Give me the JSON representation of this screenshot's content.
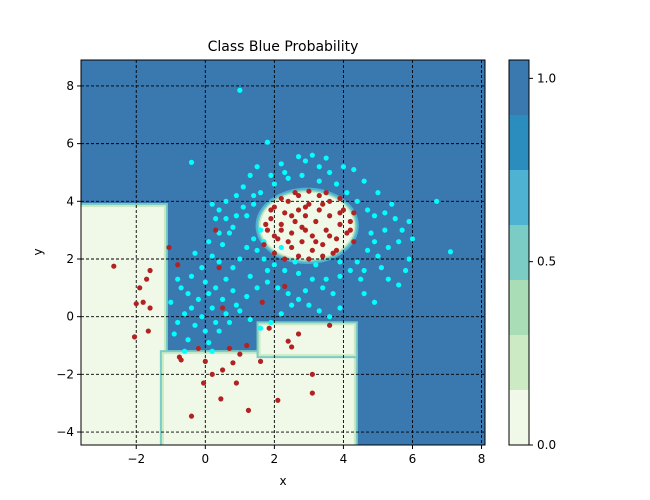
{
  "chart_data": {
    "type": "contourf-scatter",
    "title": "Class Blue Probability",
    "xlabel": "x",
    "ylabel": "y",
    "xlim": [
      -3.6,
      8.1
    ],
    "ylim": [
      -4.45,
      8.9
    ],
    "xticks": [
      -2,
      0,
      2,
      4,
      6,
      8
    ],
    "yticks": [
      -4,
      -2,
      0,
      2,
      4,
      6,
      8
    ],
    "grid": true,
    "colorbar": {
      "ticks": [
        0.0,
        0.5,
        1.0
      ],
      "tick_labels": [
        "0.0",
        "0.5",
        "1.0"
      ],
      "levels": [
        0.0,
        0.15,
        0.3,
        0.45,
        0.6,
        0.75,
        0.9,
        1.05
      ],
      "colors": [
        "#f0f9e8",
        "#ccebc5",
        "#a8ddb5",
        "#7bccc4",
        "#4eb3d3",
        "#2b8cbe",
        "#3a78b0"
      ]
    },
    "regions": [
      {
        "level": 0.0,
        "x_range": [
          -3.6,
          -1.2
        ],
        "y_range": [
          -4.45,
          3.8
        ],
        "label": "red-low-left"
      },
      {
        "level": 0.0,
        "x_range": [
          -1.2,
          4.3
        ],
        "y_range": [
          -4.45,
          -1.3
        ],
        "label": "red-low-bottom"
      },
      {
        "level": 0.0,
        "x_range": [
          1.6,
          4.3
        ],
        "y_range": [
          -1.3,
          -0.3
        ],
        "label": "red-low-bottom-step"
      },
      {
        "level": 0.0,
        "x_range": [
          1.6,
          4.3
        ],
        "y_range": [
          2.0,
          4.3
        ],
        "label": "red-inner-disc"
      }
    ],
    "series": [
      {
        "name": "",
        "color": "#00ffff",
        "points": [
          [
            1.0,
            7.85
          ],
          [
            1.8,
            6.05
          ],
          [
            -0.4,
            5.35
          ],
          [
            2.7,
            5.55
          ],
          [
            3.1,
            5.6
          ],
          [
            3.3,
            5.2
          ],
          [
            3.6,
            5.0
          ],
          [
            4.3,
            5.1
          ],
          [
            2.2,
            5.3
          ],
          [
            1.5,
            5.2
          ],
          [
            1.3,
            4.9
          ],
          [
            1.1,
            4.5
          ],
          [
            0.9,
            4.2
          ],
          [
            0.6,
            4.0
          ],
          [
            0.4,
            3.7
          ],
          [
            0.2,
            3.9
          ],
          [
            0.3,
            3.4
          ],
          [
            0.6,
            3.4
          ],
          [
            0.8,
            3.1
          ],
          [
            1.2,
            3.5
          ],
          [
            1.4,
            3.9
          ],
          [
            1.6,
            4.3
          ],
          [
            2.0,
            4.6
          ],
          [
            2.4,
            4.8
          ],
          [
            2.8,
            4.9
          ],
          [
            3.3,
            4.7
          ],
          [
            3.8,
            4.6
          ],
          [
            4.1,
            4.3
          ],
          [
            4.4,
            4.0
          ],
          [
            4.7,
            3.7
          ],
          [
            4.9,
            3.5
          ],
          [
            5.2,
            3.6
          ],
          [
            5.5,
            3.4
          ],
          [
            5.7,
            3.0
          ],
          [
            5.6,
            2.6
          ],
          [
            5.3,
            2.4
          ],
          [
            5.0,
            2.1
          ],
          [
            4.7,
            2.3
          ],
          [
            4.4,
            1.9
          ],
          [
            4.2,
            1.6
          ],
          [
            3.9,
            1.4
          ],
          [
            3.5,
            1.3
          ],
          [
            3.1,
            1.3
          ],
          [
            2.7,
            1.5
          ],
          [
            2.3,
            1.6
          ],
          [
            2.0,
            1.8
          ],
          [
            1.7,
            2.0
          ],
          [
            1.5,
            2.3
          ],
          [
            1.4,
            2.7
          ],
          [
            1.2,
            2.4
          ],
          [
            1.0,
            2.0
          ],
          [
            0.8,
            1.7
          ],
          [
            0.6,
            1.3
          ],
          [
            0.3,
            1.0
          ],
          [
            0.1,
            0.8
          ],
          [
            -0.2,
            0.6
          ],
          [
            -0.4,
            0.3
          ],
          [
            -0.6,
            0.1
          ],
          [
            -0.8,
            -0.2
          ],
          [
            -1.0,
            0.5
          ],
          [
            -0.7,
            1.0
          ],
          [
            -0.4,
            1.4
          ],
          [
            -0.1,
            1.7
          ],
          [
            0.2,
            2.1
          ],
          [
            0.5,
            2.5
          ],
          [
            0.7,
            2.9
          ],
          [
            0.4,
            1.9
          ],
          [
            0.0,
            1.2
          ],
          [
            -0.3,
            -0.3
          ],
          [
            -0.5,
            -0.8
          ],
          [
            -0.2,
            -1.1
          ],
          [
            0.1,
            -0.9
          ],
          [
            0.0,
            -0.5
          ],
          [
            0.3,
            -0.2
          ],
          [
            0.6,
            0.1
          ],
          [
            0.9,
            0.4
          ],
          [
            1.2,
            0.7
          ],
          [
            1.5,
            1.0
          ],
          [
            1.8,
            1.2
          ],
          [
            2.1,
            1.0
          ],
          [
            2.4,
            0.8
          ],
          [
            2.7,
            0.6
          ],
          [
            3.0,
            0.4
          ],
          [
            3.3,
            0.2
          ],
          [
            3.6,
            0.0
          ],
          [
            3.9,
            0.3
          ],
          [
            3.7,
            0.8
          ],
          [
            3.4,
            1.0
          ],
          [
            2.9,
            0.9
          ],
          [
            2.5,
            0.4
          ],
          [
            2.2,
            0.1
          ],
          [
            1.9,
            -0.2
          ],
          [
            1.6,
            -0.4
          ],
          [
            1.3,
            -0.1
          ],
          [
            1.0,
            0.2
          ],
          [
            0.7,
            -0.2
          ],
          [
            0.4,
            -0.5
          ],
          [
            0.2,
            -1.2
          ],
          [
            -0.6,
            -1.2
          ],
          [
            -0.9,
            -0.6
          ],
          [
            6.0,
            2.7
          ],
          [
            6.7,
            4.0
          ],
          [
            7.1,
            2.25
          ],
          [
            5.8,
            1.6
          ],
          [
            5.6,
            1.1
          ],
          [
            5.3,
            1.3
          ],
          [
            4.9,
            0.5
          ],
          [
            4.6,
            0.8
          ],
          [
            4.5,
            1.3
          ],
          [
            5.1,
            1.7
          ],
          [
            5.9,
            2.0
          ],
          [
            5.9,
            3.3
          ],
          [
            5.4,
            3.9
          ],
          [
            5.0,
            4.3
          ],
          [
            4.6,
            4.7
          ],
          [
            4.0,
            5.2
          ],
          [
            3.5,
            5.5
          ],
          [
            2.9,
            5.4
          ],
          [
            2.3,
            5.0
          ],
          [
            1.9,
            4.9
          ],
          [
            1.4,
            4.2
          ],
          [
            1.1,
            3.8
          ],
          [
            0.9,
            3.5
          ],
          [
            1.6,
            3.0
          ],
          [
            1.7,
            2.6
          ],
          [
            2.0,
            2.2
          ],
          [
            2.2,
            2.4
          ],
          [
            4.8,
            2.9
          ],
          [
            5.2,
            3.0
          ],
          [
            4.9,
            2.6
          ],
          [
            4.6,
            1.6
          ],
          [
            3.9,
            1.9
          ],
          [
            3.2,
            1.8
          ],
          [
            2.6,
            1.9
          ],
          [
            1.8,
            1.6
          ],
          [
            1.3,
            1.4
          ],
          [
            0.8,
            0.9
          ],
          [
            0.5,
            0.6
          ],
          [
            0.2,
            0.3
          ],
          [
            -0.1,
            0.0
          ],
          [
            -0.5,
            0.8
          ],
          [
            -0.8,
            1.3
          ],
          [
            -0.3,
            2.2
          ],
          [
            0.1,
            2.6
          ],
          [
            0.4,
            2.9
          ]
        ]
      },
      {
        "name": "",
        "color": "#b22222",
        "points": [
          [
            -2.65,
            1.75
          ],
          [
            -2.0,
            0.45
          ],
          [
            -1.8,
            0.5
          ],
          [
            -1.9,
            1.0
          ],
          [
            -1.7,
            1.3
          ],
          [
            -1.6,
            1.6
          ],
          [
            -1.6,
            0.3
          ],
          [
            -1.65,
            -0.5
          ],
          [
            -2.05,
            -0.7
          ],
          [
            -1.05,
            2.4
          ],
          [
            -0.8,
            1.8
          ],
          [
            -0.75,
            -1.4
          ],
          [
            -0.7,
            -1.5
          ],
          [
            -0.4,
            -3.45
          ],
          [
            -0.2,
            -1.1
          ],
          [
            0.0,
            -1.55
          ],
          [
            -0.05,
            -2.3
          ],
          [
            0.2,
            -2.0
          ],
          [
            0.4,
            1.7
          ],
          [
            0.5,
            0.3
          ],
          [
            0.5,
            -1.85
          ],
          [
            0.45,
            -2.85
          ],
          [
            0.7,
            -1.1
          ],
          [
            0.8,
            -1.6
          ],
          [
            0.9,
            -2.3
          ],
          [
            1.0,
            -1.3
          ],
          [
            1.2,
            -1.0
          ],
          [
            1.25,
            -3.25
          ],
          [
            1.6,
            -1.55
          ],
          [
            1.65,
            0.5
          ],
          [
            1.85,
            -0.4
          ],
          [
            2.1,
            -2.9
          ],
          [
            2.3,
            1.05
          ],
          [
            2.4,
            -0.85
          ],
          [
            2.5,
            -1.05
          ],
          [
            2.7,
            -0.6
          ],
          [
            3.1,
            -2.0
          ],
          [
            3.1,
            -2.65
          ],
          [
            3.6,
            -0.3
          ],
          [
            0.3,
            3.0
          ],
          [
            1.7,
            2.5
          ],
          [
            1.8,
            3.0
          ],
          [
            1.9,
            3.4
          ],
          [
            2.0,
            3.8
          ],
          [
            2.1,
            2.7
          ],
          [
            2.2,
            3.2
          ],
          [
            2.3,
            3.6
          ],
          [
            2.4,
            4.0
          ],
          [
            2.5,
            2.4
          ],
          [
            2.5,
            2.9
          ],
          [
            2.6,
            3.3
          ],
          [
            2.7,
            3.7
          ],
          [
            2.7,
            4.2
          ],
          [
            2.8,
            2.6
          ],
          [
            2.9,
            3.0
          ],
          [
            2.9,
            3.5
          ],
          [
            3.0,
            3.9
          ],
          [
            3.1,
            2.3
          ],
          [
            3.1,
            2.8
          ],
          [
            3.2,
            3.3
          ],
          [
            3.3,
            3.7
          ],
          [
            3.3,
            4.2
          ],
          [
            3.4,
            2.5
          ],
          [
            3.5,
            3.0
          ],
          [
            3.6,
            3.5
          ],
          [
            3.6,
            4.0
          ],
          [
            3.7,
            2.2
          ],
          [
            3.8,
            2.7
          ],
          [
            3.9,
            3.2
          ],
          [
            4.0,
            3.7
          ],
          [
            4.1,
            2.9
          ],
          [
            4.2,
            3.3
          ],
          [
            4.3,
            2.6
          ],
          [
            2.0,
            2.2
          ],
          [
            2.3,
            2.0
          ],
          [
            2.7,
            2.1
          ],
          [
            3.0,
            2.0
          ],
          [
            3.4,
            2.1
          ],
          [
            3.8,
            2.3
          ],
          [
            4.2,
            3.0
          ],
          [
            4.3,
            3.6
          ],
          [
            3.9,
            4.1
          ],
          [
            3.5,
            4.3
          ],
          [
            3.0,
            4.35
          ],
          [
            2.6,
            4.3
          ],
          [
            2.2,
            4.1
          ],
          [
            1.9,
            3.7
          ],
          [
            1.75,
            3.2
          ],
          [
            2.0,
            2.8
          ],
          [
            2.4,
            2.6
          ],
          [
            2.8,
            3.1
          ],
          [
            3.2,
            2.6
          ],
          [
            3.6,
            2.8
          ],
          [
            3.9,
            3.6
          ],
          [
            3.4,
            3.9
          ],
          [
            2.9,
            3.8
          ],
          [
            2.5,
            3.5
          ],
          [
            2.2,
            3.0
          ]
        ]
      }
    ]
  }
}
